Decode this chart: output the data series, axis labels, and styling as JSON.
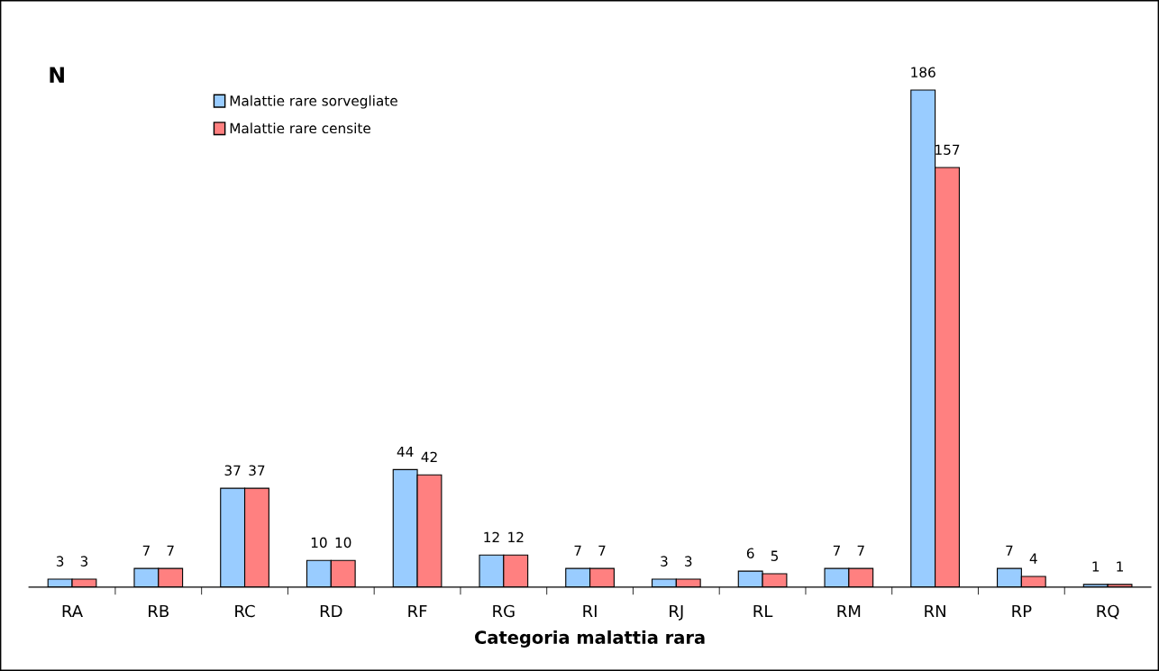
{
  "chart_data": {
    "type": "bar",
    "xlabel": "Categoria malattia rara",
    "ylabel": "N",
    "categories": [
      "RA",
      "RB",
      "RC",
      "RD",
      "RF",
      "RG",
      "RI",
      "RJ",
      "RL",
      "RM",
      "RN",
      "RP",
      "RQ"
    ],
    "series": [
      {
        "name": "Malattie rare sorvegliate",
        "color": "#99ccff",
        "values": [
          3,
          7,
          37,
          10,
          44,
          12,
          7,
          3,
          6,
          7,
          186,
          7,
          1
        ]
      },
      {
        "name": "Malattie rare censite",
        "color": "#ff8080",
        "values": [
          3,
          7,
          37,
          10,
          42,
          12,
          7,
          3,
          5,
          7,
          157,
          4,
          1
        ]
      }
    ],
    "data_labels": true,
    "legend": "top left",
    "grid": false,
    "tick_labels": "x"
  }
}
